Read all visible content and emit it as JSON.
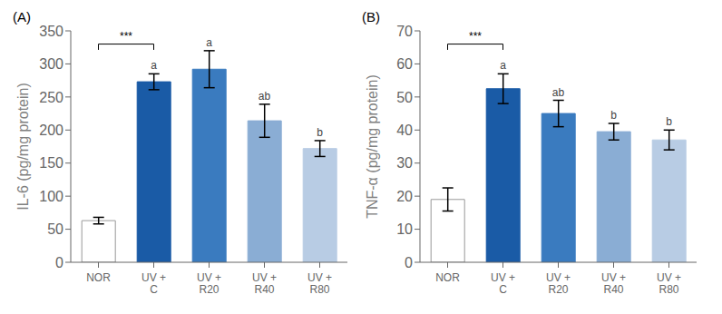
{
  "chart_data": [
    {
      "type": "bar",
      "title": "(A)",
      "ylabel": "IL-6 (pg/mg protein)",
      "categories": [
        "NOR",
        "UV +\nC",
        "UV +\nR20",
        "UV +\nR40",
        "UV +\nR80"
      ],
      "values": [
        63,
        273,
        292,
        214,
        172
      ],
      "errors": [
        5,
        12,
        28,
        25,
        12
      ],
      "colors": [
        "#ffffff",
        "#1a5ba6",
        "#3a7bbf",
        "#8aadd4",
        "#b8cce4"
      ],
      "bar_labels": [
        null,
        "a",
        "a",
        "ab",
        "b"
      ],
      "annotations": [
        {
          "text": "***",
          "from": "NOR",
          "to": "UV +\nC",
          "y": 330
        }
      ],
      "ylim": [
        0,
        350
      ],
      "yticks": [
        0,
        50,
        100,
        150,
        200,
        250,
        300,
        350
      ],
      "grid": false
    },
    {
      "type": "bar",
      "title": "(B)",
      "ylabel": "TNF-α (pg/mg protein)",
      "categories": [
        "NOR",
        "UV +\nC",
        "UV +\nR20",
        "UV +\nR40",
        "UV +\nR80"
      ],
      "values": [
        19,
        52.5,
        45,
        39.5,
        37
      ],
      "errors": [
        3.5,
        4.5,
        4,
        2.5,
        3
      ],
      "colors": [
        "#ffffff",
        "#1a5ba6",
        "#3a7bbf",
        "#8aadd4",
        "#b8cce4"
      ],
      "bar_labels": [
        null,
        "a",
        "ab",
        "b",
        "b"
      ],
      "annotations": [
        {
          "text": "***",
          "from": "NOR",
          "to": "UV +\nC",
          "y": 66
        }
      ],
      "ylim": [
        0,
        70
      ],
      "yticks": [
        0,
        10,
        20,
        30,
        40,
        50,
        60,
        70
      ],
      "grid": false
    }
  ]
}
